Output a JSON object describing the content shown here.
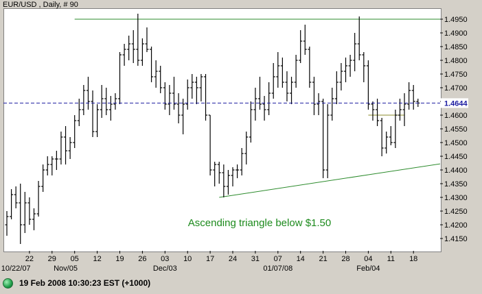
{
  "chart_data": {
    "type": "ohlc",
    "title": "EUR/USD , Daily, # 90",
    "ylim": [
      1.4105,
      1.499
    ],
    "y_ticks": [
      "1.4950",
      "1.4900",
      "1.4850",
      "1.4800",
      "1.4750",
      "1.4700",
      "1.4650",
      "1.4600",
      "1.4550",
      "1.4500",
      "1.4450",
      "1.4400",
      "1.4350",
      "1.4300",
      "1.4250",
      "1.4200",
      "1.4150"
    ],
    "x_day_labels": [
      {
        "index": 5,
        "label": "22"
      },
      {
        "index": 10,
        "label": "29"
      },
      {
        "index": 15,
        "label": "05"
      },
      {
        "index": 20,
        "label": "12"
      },
      {
        "index": 25,
        "label": "19"
      },
      {
        "index": 30,
        "label": "26"
      },
      {
        "index": 35,
        "label": "03"
      },
      {
        "index": 40,
        "label": "10"
      },
      {
        "index": 45,
        "label": "17"
      },
      {
        "index": 50,
        "label": "24"
      },
      {
        "index": 55,
        "label": "31"
      },
      {
        "index": 60,
        "label": "07"
      },
      {
        "index": 65,
        "label": "14"
      },
      {
        "index": 70,
        "label": "21"
      },
      {
        "index": 75,
        "label": "28"
      },
      {
        "index": 80,
        "label": "04"
      },
      {
        "index": 85,
        "label": "11"
      },
      {
        "index": 90,
        "label": "18"
      }
    ],
    "x_month_labels": [
      {
        "index": 2,
        "label": "10/22/07"
      },
      {
        "index": 13,
        "label": "Nov/05"
      },
      {
        "index": 35,
        "label": "Dec/03"
      },
      {
        "index": 60,
        "label": "01/07/08"
      },
      {
        "index": 80,
        "label": "Feb/04"
      }
    ],
    "current_price": "1.4644",
    "current_price_value": 1.4644,
    "resistance_level": 1.495,
    "support_line": {
      "from": [
        47,
        1.43
      ],
      "to": [
        93,
        1.4415
      ]
    },
    "short_level": {
      "from": [
        80,
        1.46
      ],
      "to": [
        88,
        1.46
      ]
    },
    "annotation": "Ascending triangle below $1.50",
    "bars": [
      {
        "o": 1.42,
        "h": 1.425,
        "l": 1.416,
        "c": 1.423
      },
      {
        "o": 1.423,
        "h": 1.433,
        "l": 1.422,
        "c": 1.431
      },
      {
        "o": 1.431,
        "h": 1.434,
        "l": 1.426,
        "c": 1.428
      },
      {
        "o": 1.428,
        "h": 1.435,
        "l": 1.413,
        "c": 1.42
      },
      {
        "o": 1.42,
        "h": 1.432,
        "l": 1.417,
        "c": 1.428
      },
      {
        "o": 1.428,
        "h": 1.43,
        "l": 1.42,
        "c": 1.422
      },
      {
        "o": 1.422,
        "h": 1.426,
        "l": 1.418,
        "c": 1.424
      },
      {
        "o": 1.424,
        "h": 1.436,
        "l": 1.423,
        "c": 1.434
      },
      {
        "o": 1.434,
        "h": 1.442,
        "l": 1.432,
        "c": 1.44
      },
      {
        "o": 1.44,
        "h": 1.445,
        "l": 1.438,
        "c": 1.442
      },
      {
        "o": 1.442,
        "h": 1.445,
        "l": 1.438,
        "c": 1.444
      },
      {
        "o": 1.444,
        "h": 1.447,
        "l": 1.44,
        "c": 1.444
      },
      {
        "o": 1.444,
        "h": 1.454,
        "l": 1.442,
        "c": 1.452
      },
      {
        "o": 1.452,
        "h": 1.456,
        "l": 1.442,
        "c": 1.447
      },
      {
        "o": 1.447,
        "h": 1.452,
        "l": 1.444,
        "c": 1.45
      },
      {
        "o": 1.45,
        "h": 1.46,
        "l": 1.448,
        "c": 1.458
      },
      {
        "o": 1.458,
        "h": 1.466,
        "l": 1.456,
        "c": 1.462
      },
      {
        "o": 1.462,
        "h": 1.471,
        "l": 1.46,
        "c": 1.469
      },
      {
        "o": 1.469,
        "h": 1.474,
        "l": 1.462,
        "c": 1.465
      },
      {
        "o": 1.465,
        "h": 1.469,
        "l": 1.452,
        "c": 1.454
      },
      {
        "o": 1.454,
        "h": 1.464,
        "l": 1.452,
        "c": 1.462
      },
      {
        "o": 1.462,
        "h": 1.471,
        "l": 1.459,
        "c": 1.466
      },
      {
        "o": 1.466,
        "h": 1.47,
        "l": 1.46,
        "c": 1.462
      },
      {
        "o": 1.462,
        "h": 1.467,
        "l": 1.458,
        "c": 1.464
      },
      {
        "o": 1.464,
        "h": 1.468,
        "l": 1.462,
        "c": 1.466
      },
      {
        "o": 1.466,
        "h": 1.483,
        "l": 1.464,
        "c": 1.482
      },
      {
        "o": 1.482,
        "h": 1.486,
        "l": 1.478,
        "c": 1.484
      },
      {
        "o": 1.484,
        "h": 1.489,
        "l": 1.48,
        "c": 1.486
      },
      {
        "o": 1.486,
        "h": 1.491,
        "l": 1.479,
        "c": 1.484
      },
      {
        "o": 1.484,
        "h": 1.497,
        "l": 1.478,
        "c": 1.48
      },
      {
        "o": 1.48,
        "h": 1.488,
        "l": 1.478,
        "c": 1.486
      },
      {
        "o": 1.486,
        "h": 1.492,
        "l": 1.483,
        "c": 1.484
      },
      {
        "o": 1.484,
        "h": 1.485,
        "l": 1.472,
        "c": 1.474
      },
      {
        "o": 1.474,
        "h": 1.48,
        "l": 1.47,
        "c": 1.476
      },
      {
        "o": 1.476,
        "h": 1.478,
        "l": 1.468,
        "c": 1.47
      },
      {
        "o": 1.47,
        "h": 1.472,
        "l": 1.462,
        "c": 1.464
      },
      {
        "o": 1.464,
        "h": 1.471,
        "l": 1.46,
        "c": 1.468
      },
      {
        "o": 1.468,
        "h": 1.474,
        "l": 1.462,
        "c": 1.464
      },
      {
        "o": 1.464,
        "h": 1.468,
        "l": 1.457,
        "c": 1.46
      },
      {
        "o": 1.46,
        "h": 1.466,
        "l": 1.453,
        "c": 1.464
      },
      {
        "o": 1.464,
        "h": 1.473,
        "l": 1.462,
        "c": 1.47
      },
      {
        "o": 1.47,
        "h": 1.475,
        "l": 1.466,
        "c": 1.472
      },
      {
        "o": 1.472,
        "h": 1.474,
        "l": 1.464,
        "c": 1.47
      },
      {
        "o": 1.47,
        "h": 1.475,
        "l": 1.465,
        "c": 1.474
      },
      {
        "o": 1.474,
        "h": 1.475,
        "l": 1.458,
        "c": 1.46
      },
      {
        "o": 1.46,
        "h": 1.46,
        "l": 1.438,
        "c": 1.44
      },
      {
        "o": 1.44,
        "h": 1.443,
        "l": 1.434,
        "c": 1.442
      },
      {
        "o": 1.442,
        "h": 1.443,
        "l": 1.435,
        "c": 1.439
      },
      {
        "o": 1.439,
        "h": 1.442,
        "l": 1.43,
        "c": 1.434
      },
      {
        "o": 1.434,
        "h": 1.44,
        "l": 1.431,
        "c": 1.438
      },
      {
        "o": 1.438,
        "h": 1.441,
        "l": 1.434,
        "c": 1.44
      },
      {
        "o": 1.44,
        "h": 1.442,
        "l": 1.437,
        "c": 1.44
      },
      {
        "o": 1.44,
        "h": 1.448,
        "l": 1.438,
        "c": 1.446
      },
      {
        "o": 1.446,
        "h": 1.454,
        "l": 1.442,
        "c": 1.452
      },
      {
        "o": 1.452,
        "h": 1.465,
        "l": 1.45,
        "c": 1.462
      },
      {
        "o": 1.462,
        "h": 1.47,
        "l": 1.458,
        "c": 1.466
      },
      {
        "o": 1.466,
        "h": 1.474,
        "l": 1.462,
        "c": 1.464
      },
      {
        "o": 1.464,
        "h": 1.467,
        "l": 1.458,
        "c": 1.462
      },
      {
        "o": 1.462,
        "h": 1.472,
        "l": 1.46,
        "c": 1.468
      },
      {
        "o": 1.468,
        "h": 1.479,
        "l": 1.466,
        "c": 1.474
      },
      {
        "o": 1.474,
        "h": 1.483,
        "l": 1.47,
        "c": 1.478
      },
      {
        "o": 1.478,
        "h": 1.481,
        "l": 1.47,
        "c": 1.472
      },
      {
        "o": 1.472,
        "h": 1.476,
        "l": 1.465,
        "c": 1.468
      },
      {
        "o": 1.468,
        "h": 1.474,
        "l": 1.464,
        "c": 1.472
      },
      {
        "o": 1.472,
        "h": 1.482,
        "l": 1.47,
        "c": 1.48
      },
      {
        "o": 1.48,
        "h": 1.491,
        "l": 1.479,
        "c": 1.487
      },
      {
        "o": 1.487,
        "h": 1.493,
        "l": 1.482,
        "c": 1.484
      },
      {
        "o": 1.484,
        "h": 1.485,
        "l": 1.47,
        "c": 1.472
      },
      {
        "o": 1.472,
        "h": 1.474,
        "l": 1.46,
        "c": 1.464
      },
      {
        "o": 1.464,
        "h": 1.468,
        "l": 1.46,
        "c": 1.465
      },
      {
        "o": 1.465,
        "h": 1.466,
        "l": 1.437,
        "c": 1.44
      },
      {
        "o": 1.44,
        "h": 1.464,
        "l": 1.437,
        "c": 1.46
      },
      {
        "o": 1.46,
        "h": 1.47,
        "l": 1.458,
        "c": 1.466
      },
      {
        "o": 1.466,
        "h": 1.476,
        "l": 1.464,
        "c": 1.472
      },
      {
        "o": 1.472,
        "h": 1.479,
        "l": 1.469,
        "c": 1.476
      },
      {
        "o": 1.476,
        "h": 1.481,
        "l": 1.472,
        "c": 1.478
      },
      {
        "o": 1.478,
        "h": 1.482,
        "l": 1.474,
        "c": 1.48
      },
      {
        "o": 1.48,
        "h": 1.49,
        "l": 1.476,
        "c": 1.486
      },
      {
        "o": 1.486,
        "h": 1.496,
        "l": 1.48,
        "c": 1.482
      },
      {
        "o": 1.482,
        "h": 1.483,
        "l": 1.472,
        "c": 1.478
      },
      {
        "o": 1.478,
        "h": 1.48,
        "l": 1.462,
        "c": 1.464
      },
      {
        "o": 1.464,
        "h": 1.465,
        "l": 1.458,
        "c": 1.462
      },
      {
        "o": 1.462,
        "h": 1.466,
        "l": 1.456,
        "c": 1.458
      },
      {
        "o": 1.458,
        "h": 1.459,
        "l": 1.445,
        "c": 1.448
      },
      {
        "o": 1.448,
        "h": 1.454,
        "l": 1.446,
        "c": 1.452
      },
      {
        "o": 1.452,
        "h": 1.456,
        "l": 1.449,
        "c": 1.45
      },
      {
        "o": 1.45,
        "h": 1.462,
        "l": 1.448,
        "c": 1.46
      },
      {
        "o": 1.46,
        "h": 1.466,
        "l": 1.458,
        "c": 1.462
      },
      {
        "o": 1.462,
        "h": 1.468,
        "l": 1.456,
        "c": 1.464
      },
      {
        "o": 1.464,
        "h": 1.472,
        "l": 1.462,
        "c": 1.469
      },
      {
        "o": 1.469,
        "h": 1.471,
        "l": 1.462,
        "c": 1.465
      },
      {
        "o": 1.465,
        "h": 1.466,
        "l": 1.463,
        "c": 1.4644
      }
    ]
  },
  "status": {
    "text": "19 Feb 2008 10:30:23  EST (+1000)"
  },
  "colors": {
    "bars": "#000000",
    "resistance": "#2a8a2a",
    "support": "#2a8a2a",
    "short_level": "#8a8a2a",
    "current_price_line": "#1a1aa0",
    "annotation": "#1c8a1c",
    "plot_bg": "#ffffff",
    "frame_bg": "#d4d0c8"
  }
}
